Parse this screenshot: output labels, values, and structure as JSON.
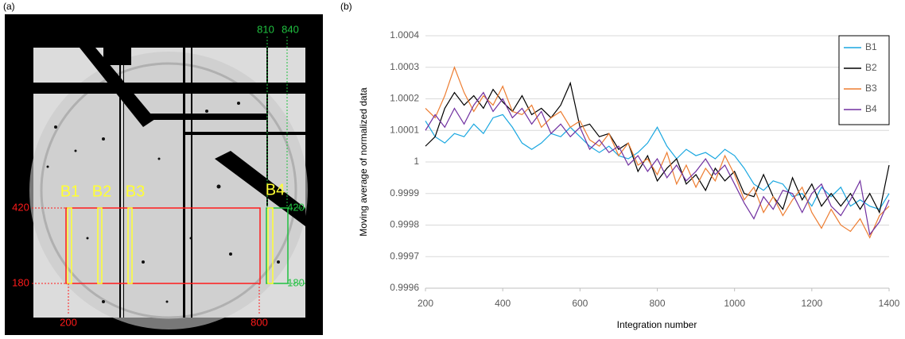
{
  "panel_a": {
    "label": "(a)",
    "top_labels": [
      "810",
      "840"
    ],
    "left_labels": [
      "420",
      "180"
    ],
    "bottom_labels": [
      "200",
      "800"
    ],
    "right_labels": [
      "420",
      "180"
    ],
    "box_labels": [
      "B1",
      "B2",
      "B3",
      "B4"
    ]
  },
  "chart_data": {
    "type": "line",
    "panel_label": "(b)",
    "x_label": "Integration number",
    "y_label": "Moving average of normalized data",
    "xlim": [
      200,
      1400
    ],
    "xticks": [
      200,
      400,
      600,
      800,
      1000,
      1200,
      1400
    ],
    "ylim": [
      0.9996,
      1.0004
    ],
    "yticks": [
      0.9996,
      0.9997,
      0.9998,
      0.9999,
      1,
      1.0001,
      1.0002,
      1.0003,
      1.0004
    ],
    "grid": true,
    "legend": "upper right",
    "x": [
      200,
      225,
      250,
      275,
      300,
      325,
      350,
      375,
      400,
      425,
      450,
      475,
      500,
      525,
      550,
      575,
      600,
      625,
      650,
      675,
      700,
      725,
      750,
      775,
      800,
      825,
      850,
      875,
      900,
      925,
      950,
      975,
      1000,
      1025,
      1050,
      1075,
      1100,
      1125,
      1150,
      1175,
      1200,
      1225,
      1250,
      1275,
      1300,
      1325,
      1350,
      1375,
      1400
    ],
    "series": [
      {
        "name": "B1",
        "color": "#1aa7e0",
        "values": [
          1.00013,
          1.00008,
          1.00006,
          1.00009,
          1.00008,
          1.00012,
          1.00009,
          1.00014,
          1.00015,
          1.00011,
          1.00006,
          1.00004,
          1.00006,
          1.00009,
          1.00008,
          1.00011,
          1.00008,
          1.00005,
          1.00003,
          1.00005,
          1.00002,
          1.00001,
          1.00003,
          1.00006,
          1.00011,
          1.00005,
          1.00001,
          1.00004,
          1.00002,
          1.00003,
          1.00001,
          1.00004,
          1.00002,
          0.99998,
          0.99993,
          0.99991,
          0.99994,
          0.99993,
          0.99989,
          0.9999,
          0.99986,
          0.99992,
          0.99989,
          0.99992,
          0.99986,
          0.99988,
          0.99986,
          0.99985,
          0.9999
        ]
      },
      {
        "name": "B2",
        "color": "#000000",
        "values": [
          1.00005,
          1.00008,
          1.00017,
          1.00022,
          1.00018,
          1.00021,
          1.00017,
          1.00023,
          1.00019,
          1.00016,
          1.00021,
          1.00015,
          1.00017,
          1.00014,
          1.00018,
          1.00025,
          1.00011,
          1.00012,
          1.00008,
          1.00009,
          1.00004,
          1.00006,
          0.99997,
          1.00002,
          0.99994,
          0.99998,
          1.00001,
          0.99993,
          0.99996,
          0.99991,
          0.99998,
          0.99994,
          0.99997,
          0.9999,
          0.99989,
          0.99996,
          0.99989,
          0.99985,
          0.99995,
          0.99988,
          0.99993,
          0.99986,
          0.9999,
          0.99986,
          0.9999,
          0.99985,
          0.9999,
          0.99984,
          0.99999
        ]
      },
      {
        "name": "B3",
        "color": "#ed7d31",
        "values": [
          1.00017,
          1.00014,
          1.00021,
          1.0003,
          1.00022,
          1.00016,
          1.00021,
          1.00018,
          1.00024,
          1.00016,
          1.00015,
          1.00018,
          1.00011,
          1.00014,
          1.00016,
          1.00011,
          1.00013,
          1.00007,
          1.00005,
          1.00009,
          1.00002,
          1.00006,
          0.99999,
          1.00001,
          0.99996,
          1.00003,
          0.99993,
          0.99999,
          0.99992,
          0.99998,
          0.99994,
          1.00002,
          0.99996,
          0.99988,
          0.99992,
          0.99984,
          0.99989,
          0.99983,
          0.99988,
          0.99992,
          0.99984,
          0.99979,
          0.99985,
          0.9998,
          0.99978,
          0.99982,
          0.99976,
          0.99983,
          0.99986
        ]
      },
      {
        "name": "B4",
        "color": "#7030a0",
        "values": [
          1.0001,
          1.00015,
          1.00011,
          1.00017,
          1.00012,
          1.00018,
          1.00022,
          1.00016,
          1.0002,
          1.00014,
          1.00017,
          1.00012,
          1.00016,
          1.00009,
          1.00012,
          1.00008,
          1.00011,
          1.00004,
          1.00007,
          1.00003,
          1.00005,
          0.99999,
          1.00002,
          0.99997,
          1.00001,
          0.99995,
          0.99999,
          0.99994,
          0.99997,
          1.00001,
          0.99996,
          0.99999,
          0.99993,
          0.99987,
          0.99982,
          0.99989,
          0.99985,
          0.99991,
          0.9999,
          0.99984,
          0.9999,
          0.99993,
          0.99986,
          0.99983,
          0.99988,
          0.99994,
          0.99977,
          0.99981,
          0.99988
        ]
      }
    ]
  }
}
